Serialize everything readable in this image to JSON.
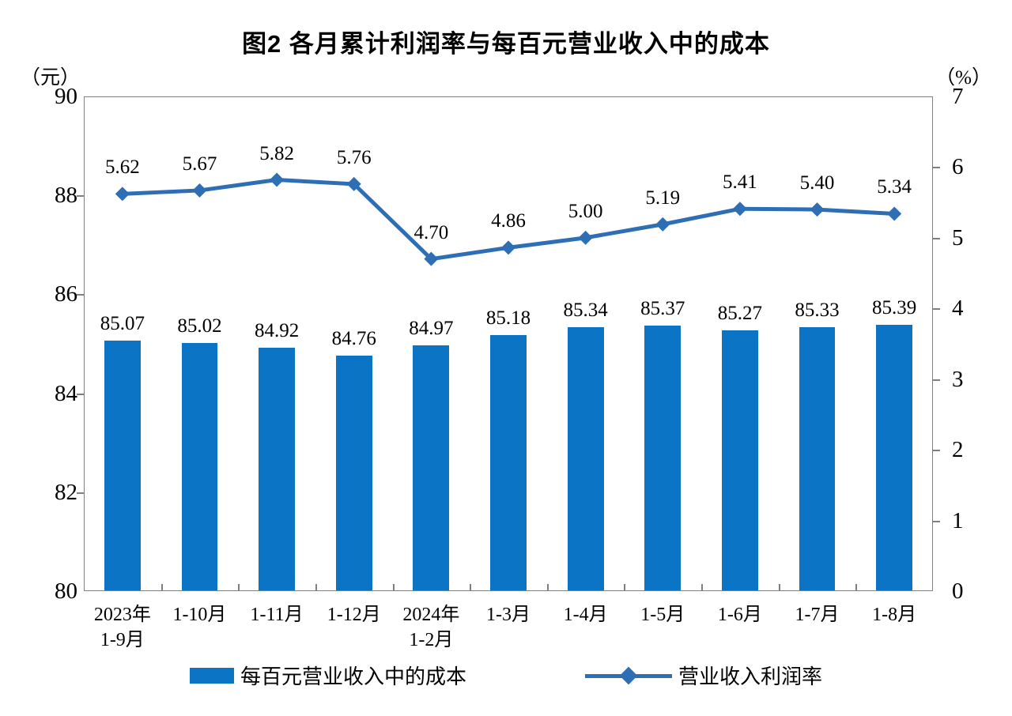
{
  "title": "图2  各月累计利润率与每百元营业收入中的成本",
  "left_axis": {
    "unit": "（元）",
    "min": 80,
    "max": 90,
    "ticks": [
      90,
      88,
      86,
      84,
      82,
      80
    ]
  },
  "right_axis": {
    "unit": "（%）",
    "min": 0,
    "max": 7,
    "ticks": [
      7,
      6,
      5,
      4,
      3,
      2,
      1,
      0
    ]
  },
  "chart_data": {
    "type": "bar+line",
    "title": "图2  各月累计利润率与每百元营业收入中的成本",
    "categories": [
      "2023年\n1-9月",
      "1-10月",
      "1-11月",
      "1-12月",
      "2024年\n1-2月",
      "1-3月",
      "1-4月",
      "1-5月",
      "1-6月",
      "1-7月",
      "1-8月"
    ],
    "series": [
      {
        "name": "每百元营业收入中的成本",
        "type": "bar",
        "axis": "left",
        "values": [
          85.07,
          85.02,
          84.92,
          84.76,
          84.97,
          85.18,
          85.34,
          85.37,
          85.27,
          85.33,
          85.39
        ]
      },
      {
        "name": "营业收入利润率",
        "type": "line",
        "axis": "right",
        "values": [
          5.62,
          5.67,
          5.82,
          5.76,
          4.7,
          4.86,
          5.0,
          5.19,
          5.41,
          5.4,
          5.34
        ]
      }
    ],
    "left_ylim": [
      80,
      90
    ],
    "right_ylim": [
      0,
      7
    ],
    "grid": false,
    "legend_position": "bottom"
  },
  "legend": {
    "bar_label": "每百元营业收入中的成本",
    "line_label": "营业收入利润率"
  },
  "colors": {
    "bar": "#0b74c5",
    "line": "#2e6eb4",
    "marker": "#2e6eb4",
    "frame": "#7f7f7f",
    "text": "#000000"
  }
}
